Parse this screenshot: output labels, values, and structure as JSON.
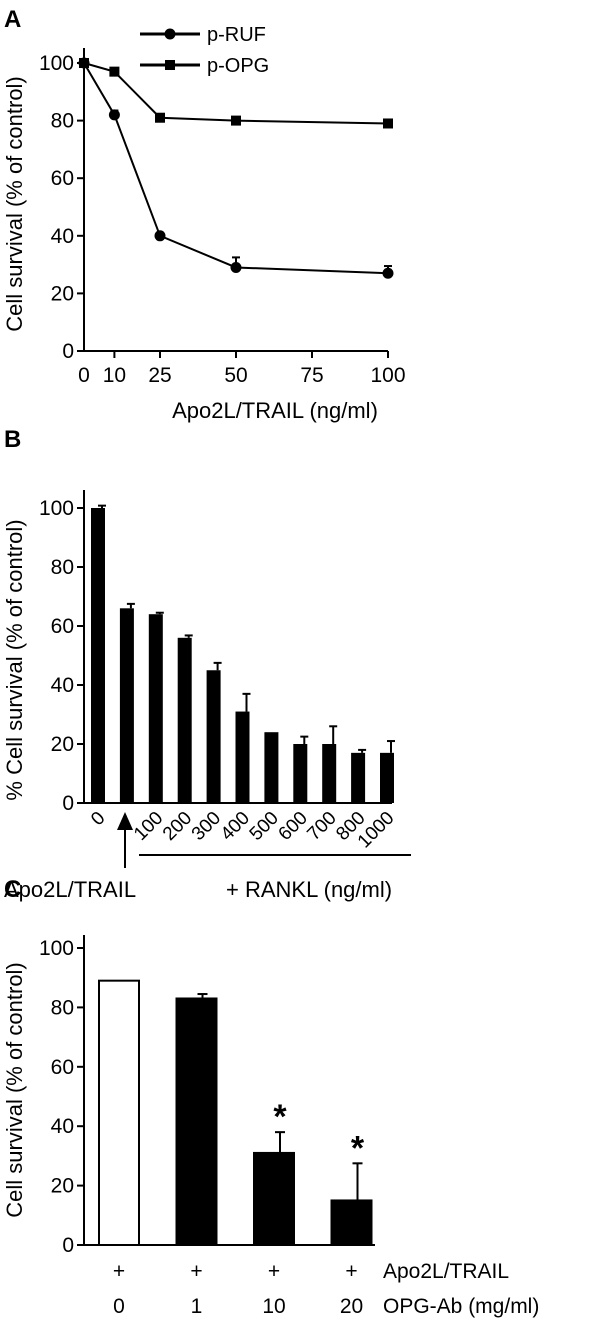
{
  "chart_data": [
    {
      "panel_label": "A",
      "type": "line",
      "xlabel": "Apo2L/TRAIL (ng/ml)",
      "ylabel": "Cell survival (% of control)",
      "xlim": [
        0,
        100
      ],
      "ylim": [
        0,
        100
      ],
      "x_ticks": [
        0,
        10,
        25,
        50,
        75,
        100
      ],
      "y_ticks": [
        0,
        20,
        40,
        60,
        80,
        100
      ],
      "legend_position": "top-center",
      "series": [
        {
          "name": "p-RUF",
          "marker": "circle",
          "x": [
            0,
            10,
            25,
            50,
            100
          ],
          "y": [
            100,
            82,
            40,
            29,
            27
          ],
          "error": [
            0,
            1.5,
            0,
            3.5,
            2.5
          ]
        },
        {
          "name": "p-OPG",
          "marker": "square",
          "x": [
            0,
            10,
            25,
            50,
            100
          ],
          "y": [
            100,
            97,
            81,
            80,
            79
          ],
          "error": [
            0,
            0,
            0,
            0,
            0
          ]
        }
      ]
    },
    {
      "panel_label": "B",
      "type": "bar",
      "ylabel": "% Cell survival (% of control)",
      "ylim": [
        0,
        100
      ],
      "y_ticks": [
        0,
        20,
        40,
        60,
        80,
        100
      ],
      "categories": [
        "0",
        "",
        "100",
        "200",
        "300",
        "400",
        "500",
        "600",
        "700",
        "800",
        "1000"
      ],
      "values": [
        100,
        66,
        64,
        56,
        45,
        31,
        24,
        20,
        20,
        17,
        17
      ],
      "errors": [
        0.8,
        1.5,
        0.5,
        0.8,
        2.5,
        6,
        0,
        2.5,
        6,
        1,
        4
      ],
      "group_labels": {
        "left": "Apo2L/TRAIL",
        "right": "+ RANKL (ng/ml)"
      }
    },
    {
      "panel_label": "C",
      "type": "bar",
      "ylabel": "Cell survival (% of control)",
      "ylim": [
        0,
        100
      ],
      "y_ticks": [
        0,
        20,
        40,
        60,
        80,
        100
      ],
      "categories": [
        "0",
        "1",
        "10",
        "20"
      ],
      "values": [
        89,
        83,
        31,
        15
      ],
      "errors": [
        0,
        1.5,
        7,
        12.5
      ],
      "fill": [
        "#ffffff",
        "#000000",
        "#000000",
        "#000000"
      ],
      "significant": [
        false,
        false,
        true,
        true
      ],
      "significance_marker": "*",
      "row_labels": [
        {
          "label": "Apo2L/TRAIL",
          "symbols": [
            "+",
            "+",
            "+",
            "+"
          ]
        },
        {
          "label": "OPG-Ab (mg/ml)",
          "symbols": [
            "0",
            "1",
            "10",
            "20"
          ]
        }
      ]
    }
  ]
}
